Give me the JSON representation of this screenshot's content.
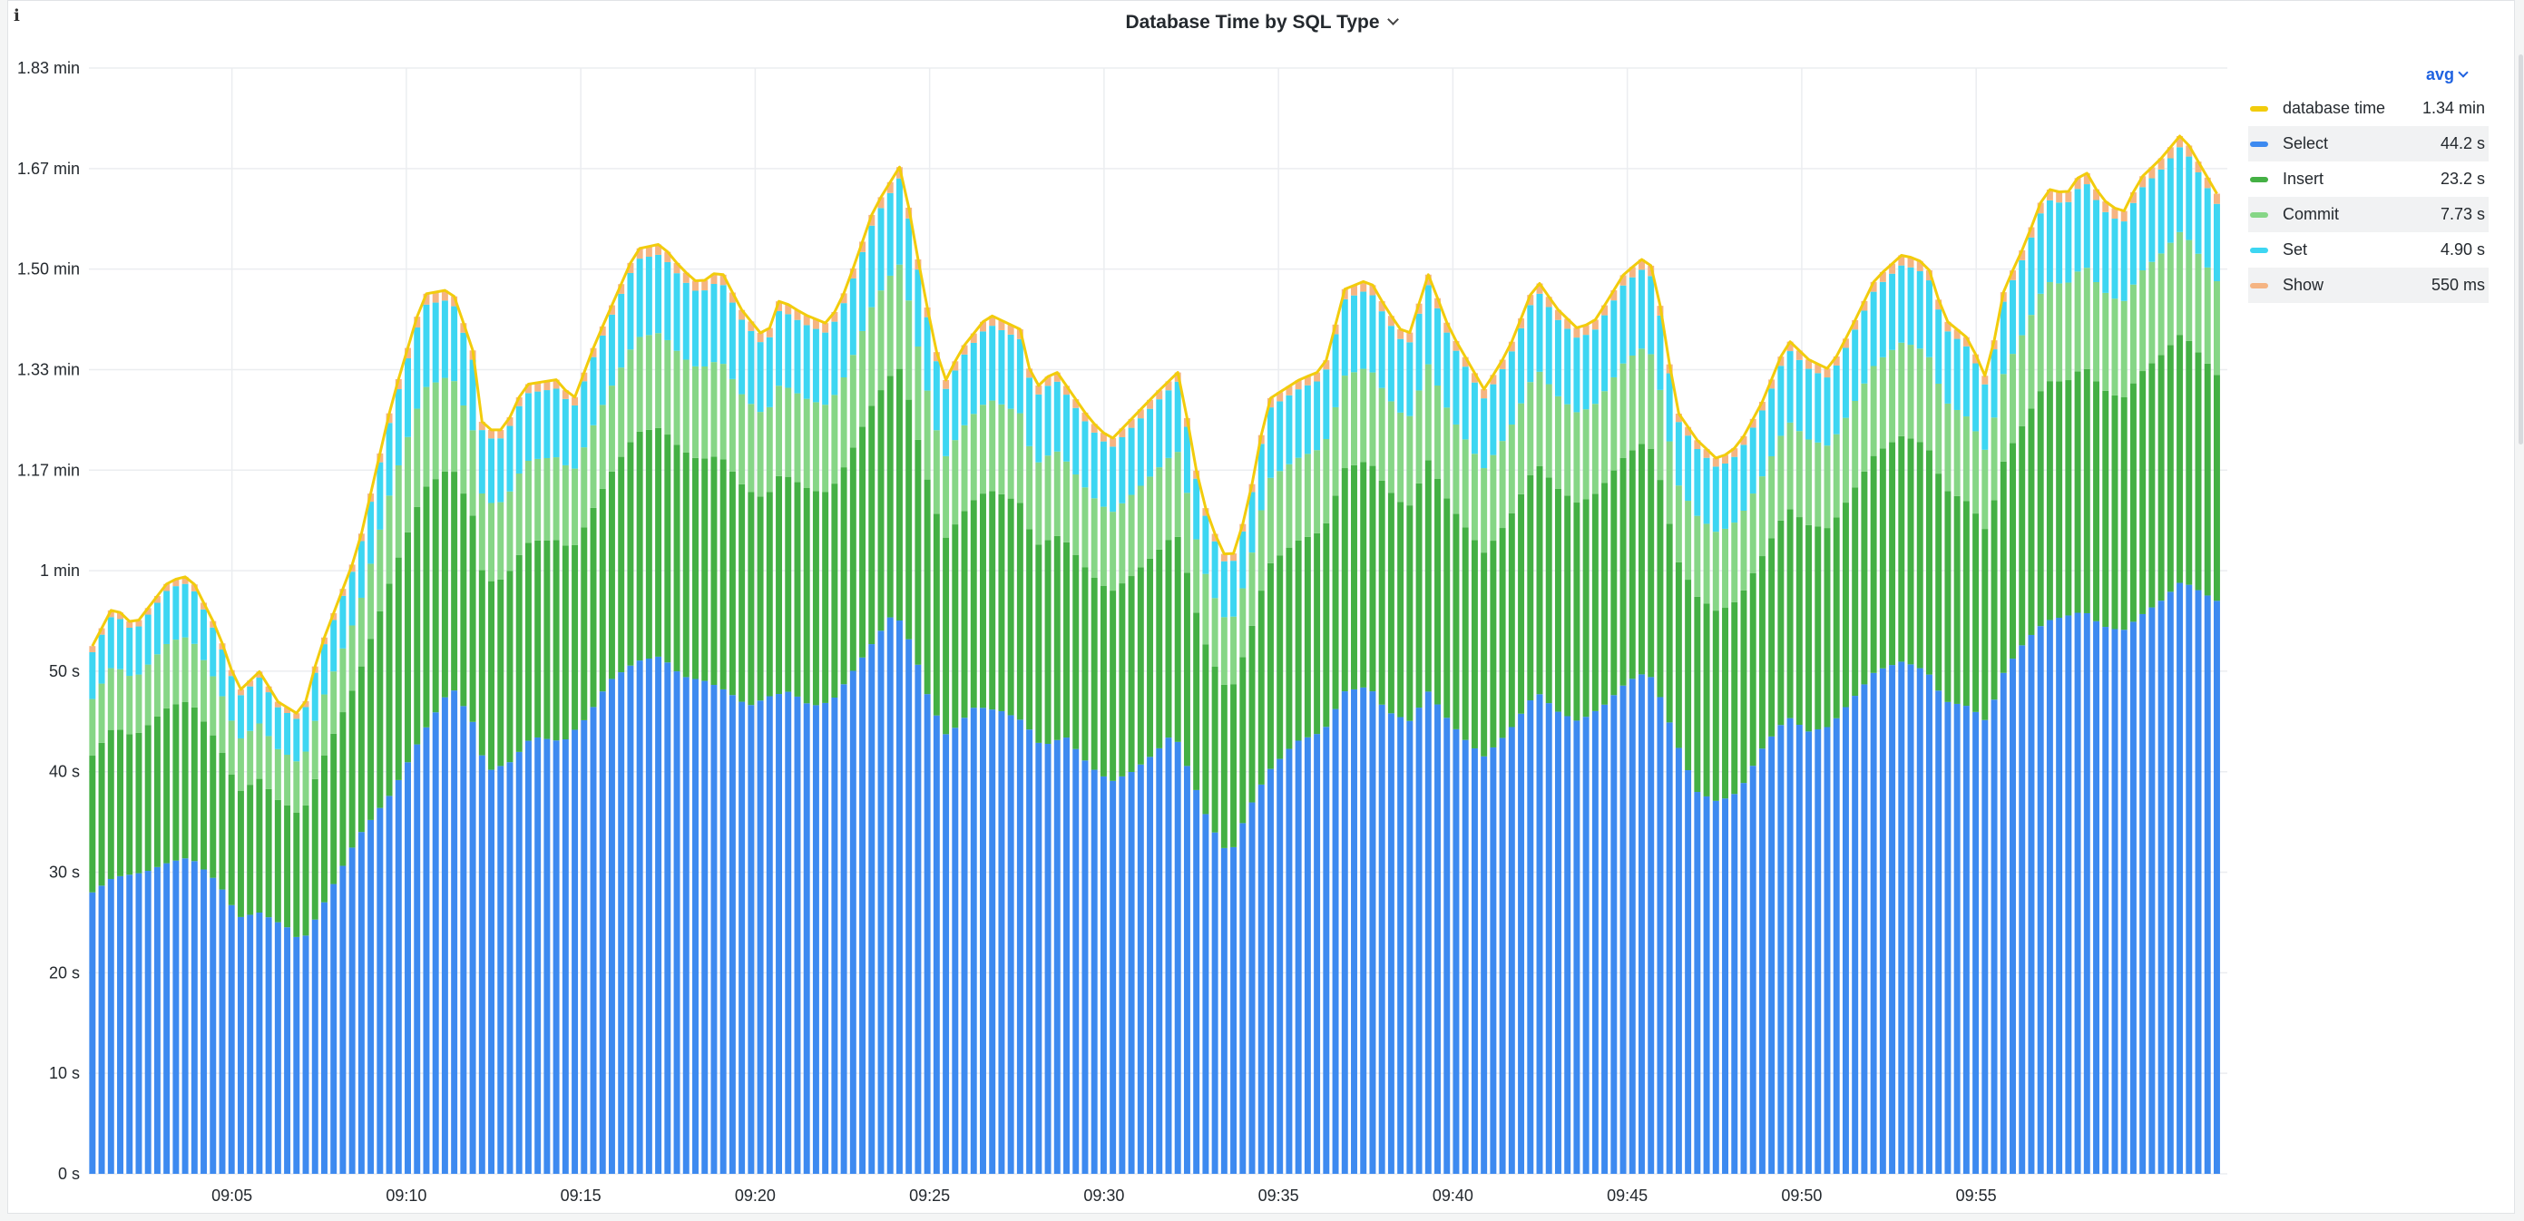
{
  "panel": {
    "title": "Database Time by SQL Type",
    "info_icon": "info-icon"
  },
  "legend": {
    "stat": "avg",
    "items": [
      {
        "name": "database time",
        "value": "1.34 min",
        "color": "#f2cc0c"
      },
      {
        "name": "Select",
        "value": "44.2 s",
        "color": "#3d8af0"
      },
      {
        "name": "Insert",
        "value": "23.2 s",
        "color": "#44b044"
      },
      {
        "name": "Commit",
        "value": "7.73 s",
        "color": "#86d686"
      },
      {
        "name": "Set",
        "value": "4.90 s",
        "color": "#3dd6f2"
      },
      {
        "name": "Show",
        "value": "550 ms",
        "color": "#f5b482"
      }
    ]
  },
  "chart_data": {
    "type": "bar",
    "stacked": true,
    "y_unit": "seconds",
    "ylim": [
      0,
      110
    ],
    "y_ticks": [
      {
        "value": 0,
        "label": "0 s"
      },
      {
        "value": 10,
        "label": "10 s"
      },
      {
        "value": 20,
        "label": "20 s"
      },
      {
        "value": 30,
        "label": "30 s"
      },
      {
        "value": 40,
        "label": "40 s"
      },
      {
        "value": 50,
        "label": "50 s"
      },
      {
        "value": 60,
        "label": "1 min"
      },
      {
        "value": 70,
        "label": "1.17 min"
      },
      {
        "value": 80,
        "label": "1.33 min"
      },
      {
        "value": 90,
        "label": "1.50 min"
      },
      {
        "value": 100,
        "label": "1.67 min"
      },
      {
        "value": 110,
        "label": "1.83 min"
      }
    ],
    "x_range_minutes": [
      9.0,
      9.983
    ],
    "x_ticks": [
      {
        "time": "09:05",
        "minute": 5
      },
      {
        "time": "09:10",
        "minute": 10
      },
      {
        "time": "09:15",
        "minute": 15
      },
      {
        "time": "09:20",
        "minute": 20
      },
      {
        "time": "09:25",
        "minute": 25
      },
      {
        "time": "09:30",
        "minute": 30
      },
      {
        "time": "09:35",
        "minute": 35
      },
      {
        "time": "09:40",
        "minute": 40
      },
      {
        "time": "09:45",
        "minute": 45
      },
      {
        "time": "09:50",
        "minute": 50
      },
      {
        "time": "09:55",
        "minute": 55
      }
    ],
    "total_keypoints": [
      [
        1.0,
        52.5
      ],
      [
        1.6,
        56.5
      ],
      [
        2.2,
        54.5
      ],
      [
        3.2,
        59.0
      ],
      [
        3.8,
        59.5
      ],
      [
        4.6,
        54.0
      ],
      [
        5.2,
        48.0
      ],
      [
        5.8,
        50.0
      ],
      [
        6.3,
        47.0
      ],
      [
        7.0,
        45.5
      ],
      [
        7.5,
        52.0
      ],
      [
        8.6,
        62.0
      ],
      [
        9.6,
        77.0
      ],
      [
        10.5,
        87.5
      ],
      [
        11.3,
        88.0
      ],
      [
        11.9,
        82.0
      ],
      [
        12.2,
        74.0
      ],
      [
        12.8,
        74.0
      ],
      [
        13.4,
        78.5
      ],
      [
        14.3,
        79.0
      ],
      [
        14.8,
        77.0
      ],
      [
        15.4,
        82.5
      ],
      [
        16.6,
        92.0
      ],
      [
        17.3,
        92.5
      ],
      [
        17.9,
        90.0
      ],
      [
        18.4,
        88.5
      ],
      [
        19.0,
        90.0
      ],
      [
        19.6,
        86.0
      ],
      [
        20.3,
        83.0
      ],
      [
        20.7,
        87.0
      ],
      [
        21.4,
        85.5
      ],
      [
        22.1,
        84.5
      ],
      [
        22.6,
        88.0
      ],
      [
        23.4,
        96.0
      ],
      [
        24.2,
        100.5
      ],
      [
        24.5,
        94.0
      ],
      [
        25.0,
        85.0
      ],
      [
        25.4,
        78.5
      ],
      [
        25.9,
        82.0
      ],
      [
        26.7,
        85.5
      ],
      [
        27.6,
        84.0
      ],
      [
        28.0,
        78.0
      ],
      [
        28.6,
        80.0
      ],
      [
        29.6,
        75.0
      ],
      [
        30.2,
        73.0
      ],
      [
        30.9,
        75.5
      ],
      [
        31.6,
        78.0
      ],
      [
        32.2,
        80.0
      ],
      [
        32.5,
        72.0
      ],
      [
        33.0,
        65.0
      ],
      [
        33.6,
        60.5
      ],
      [
        34.1,
        66.0
      ],
      [
        34.7,
        77.0
      ],
      [
        35.6,
        79.0
      ],
      [
        36.3,
        80.0
      ],
      [
        36.9,
        88.0
      ],
      [
        37.6,
        89.0
      ],
      [
        38.1,
        86.0
      ],
      [
        38.7,
        83.0
      ],
      [
        39.3,
        89.5
      ],
      [
        39.9,
        84.0
      ],
      [
        40.4,
        81.0
      ],
      [
        40.9,
        78.0
      ],
      [
        41.6,
        82.0
      ],
      [
        42.4,
        89.0
      ],
      [
        43.0,
        86.0
      ],
      [
        43.6,
        84.0
      ],
      [
        44.1,
        85.0
      ],
      [
        44.9,
        89.5
      ],
      [
        45.6,
        91.5
      ],
      [
        46.0,
        85.5
      ],
      [
        46.4,
        76.0
      ],
      [
        47.0,
        73.0
      ],
      [
        47.6,
        71.0
      ],
      [
        48.2,
        72.5
      ],
      [
        48.9,
        77.0
      ],
      [
        49.6,
        83.0
      ],
      [
        50.2,
        81.0
      ],
      [
        50.8,
        80.0
      ],
      [
        51.4,
        84.0
      ],
      [
        52.1,
        89.0
      ],
      [
        52.9,
        91.5
      ],
      [
        53.6,
        90.5
      ],
      [
        54.1,
        85.0
      ],
      [
        54.8,
        83.0
      ],
      [
        55.3,
        79.0
      ],
      [
        55.8,
        88.0
      ],
      [
        56.4,
        92.5
      ],
      [
        57.0,
        98.0
      ],
      [
        57.6,
        97.5
      ],
      [
        58.1,
        100.0
      ],
      [
        58.6,
        97.0
      ],
      [
        59.2,
        95.5
      ],
      [
        59.7,
        99.0
      ],
      [
        60.3,
        101.0
      ],
      [
        60.9,
        103.5
      ],
      [
        61.4,
        100.5
      ],
      [
        61.9,
        97.5
      ]
    ],
    "select_keypoints": [
      [
        1.0,
        28.0
      ],
      [
        1.6,
        29.5
      ],
      [
        2.5,
        30.0
      ],
      [
        3.2,
        31.0
      ],
      [
        3.8,
        31.5
      ],
      [
        4.6,
        29.0
      ],
      [
        5.2,
        25.5
      ],
      [
        5.8,
        26.0
      ],
      [
        6.6,
        24.5
      ],
      [
        7.0,
        23.0
      ],
      [
        7.5,
        26.0
      ],
      [
        8.6,
        33.5
      ],
      [
        9.6,
        38.0
      ],
      [
        10.5,
        44.0
      ],
      [
        11.3,
        48.5
      ],
      [
        11.9,
        45.0
      ],
      [
        12.3,
        40.0
      ],
      [
        13.0,
        41.0
      ],
      [
        13.6,
        43.5
      ],
      [
        14.5,
        43.0
      ],
      [
        15.2,
        45.5
      ],
      [
        15.8,
        49.0
      ],
      [
        16.6,
        51.0
      ],
      [
        17.3,
        51.5
      ],
      [
        17.9,
        49.5
      ],
      [
        18.6,
        49.0
      ],
      [
        19.2,
        48.0
      ],
      [
        19.8,
        46.5
      ],
      [
        20.4,
        47.5
      ],
      [
        21.0,
        48.0
      ],
      [
        21.6,
        46.5
      ],
      [
        22.2,
        47.0
      ],
      [
        22.8,
        50.0
      ],
      [
        23.5,
        53.5
      ],
      [
        24.0,
        56.0
      ],
      [
        24.5,
        52.5
      ],
      [
        25.0,
        47.0
      ],
      [
        25.5,
        43.5
      ],
      [
        26.3,
        46.5
      ],
      [
        27.1,
        46.0
      ],
      [
        27.7,
        45.0
      ],
      [
        28.2,
        42.5
      ],
      [
        28.9,
        43.5
      ],
      [
        29.6,
        40.5
      ],
      [
        30.2,
        39.0
      ],
      [
        30.8,
        40.0
      ],
      [
        31.5,
        42.0
      ],
      [
        32.0,
        44.0
      ],
      [
        32.5,
        39.5
      ],
      [
        33.0,
        35.0
      ],
      [
        33.6,
        31.5
      ],
      [
        34.1,
        36.0
      ],
      [
        34.7,
        40.0
      ],
      [
        35.5,
        43.0
      ],
      [
        36.3,
        44.0
      ],
      [
        36.9,
        48.0
      ],
      [
        37.6,
        48.5
      ],
      [
        38.1,
        46.0
      ],
      [
        38.8,
        45.0
      ],
      [
        39.3,
        48.0
      ],
      [
        39.9,
        45.0
      ],
      [
        40.4,
        43.0
      ],
      [
        40.9,
        41.5
      ],
      [
        41.6,
        44.0
      ],
      [
        42.4,
        48.0
      ],
      [
        43.0,
        46.0
      ],
      [
        43.6,
        45.0
      ],
      [
        44.3,
        46.5
      ],
      [
        45.0,
        49.0
      ],
      [
        45.6,
        50.0
      ],
      [
        46.0,
        47.0
      ],
      [
        46.4,
        43.0
      ],
      [
        47.0,
        38.0
      ],
      [
        47.6,
        37.0
      ],
      [
        48.2,
        38.0
      ],
      [
        48.9,
        42.5
      ],
      [
        49.6,
        45.5
      ],
      [
        50.2,
        44.0
      ],
      [
        50.8,
        44.5
      ],
      [
        51.4,
        47.0
      ],
      [
        52.1,
        50.0
      ],
      [
        52.9,
        51.0
      ],
      [
        53.6,
        50.0
      ],
      [
        54.1,
        47.0
      ],
      [
        54.8,
        46.5
      ],
      [
        55.3,
        45.0
      ],
      [
        55.8,
        50.0
      ],
      [
        56.4,
        53.0
      ],
      [
        57.0,
        55.0
      ],
      [
        57.6,
        55.5
      ],
      [
        58.1,
        56.0
      ],
      [
        58.6,
        54.5
      ],
      [
        59.2,
        54.0
      ],
      [
        59.7,
        55.5
      ],
      [
        60.3,
        57.0
      ],
      [
        60.9,
        59.0
      ],
      [
        61.4,
        58.0
      ],
      [
        61.9,
        57.0
      ]
    ],
    "series": [
      {
        "name": "Select",
        "share_of_remainder": null
      },
      {
        "name": "Insert",
        "share_of_remainder": 0.555
      },
      {
        "name": "Commit",
        "share_of_remainder": 0.23
      },
      {
        "name": "Set",
        "share_of_remainder": 0.19
      },
      {
        "name": "Show",
        "share_of_remainder": 0.025
      },
      {
        "name": "database time",
        "style": "line"
      }
    ],
    "bar_count": 230
  }
}
